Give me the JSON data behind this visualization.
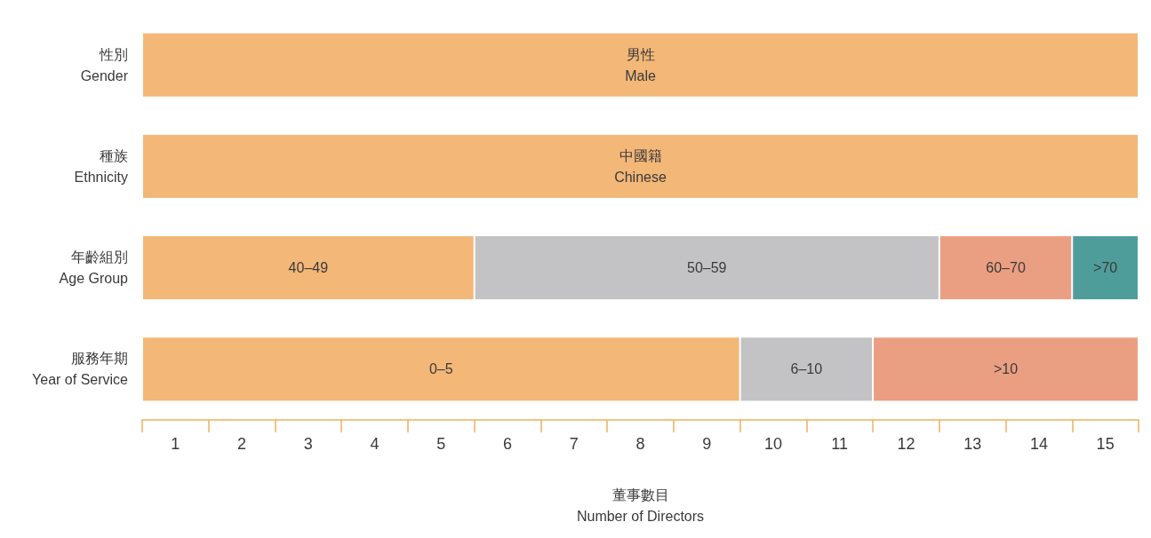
{
  "chart_data": {
    "type": "bar",
    "orientation": "horizontal",
    "stacked": true,
    "xlabel": "董事數目\nNumber of Directors",
    "categories": [
      "性別\nGender",
      "種族\nEthnicity",
      "年齡組別\nAge Group",
      "服務年期\nYear of Service"
    ],
    "series": [
      {
        "color": "#f3b778",
        "values": [
          15,
          15,
          5,
          9
        ],
        "value_labels": [
          "男性\nMale",
          "中國籍\nChinese",
          "40–49",
          "0–5"
        ]
      },
      {
        "color": "#c3c3c5",
        "values": [
          null,
          null,
          7,
          2
        ],
        "value_labels": [
          null,
          null,
          "50–59",
          "6–10"
        ]
      },
      {
        "color": "#eb9f82",
        "values": [
          null,
          null,
          2,
          4
        ],
        "value_labels": [
          null,
          null,
          "60–70",
          ">10"
        ]
      },
      {
        "color": "#4f9d9b",
        "values": [
          null,
          null,
          1,
          null
        ],
        "value_labels": [
          null,
          null,
          ">70",
          null
        ]
      }
    ],
    "xlim": [
      0,
      15
    ],
    "xticks": [
      {
        "value": 0,
        "label": null
      },
      {
        "value": 0.5,
        "label": "1"
      },
      {
        "value": 1,
        "label": null
      },
      {
        "value": 1.5,
        "label": "2"
      },
      {
        "value": 2,
        "label": null
      },
      {
        "value": 2.5,
        "label": "3"
      },
      {
        "value": 3,
        "label": null
      },
      {
        "value": 3.5,
        "label": "4"
      },
      {
        "value": 4,
        "label": null
      },
      {
        "value": 4.5,
        "label": "5"
      },
      {
        "value": 5,
        "label": null
      },
      {
        "value": 5.5,
        "label": "6"
      },
      {
        "value": 6,
        "label": null
      },
      {
        "value": 6.5,
        "label": "7"
      },
      {
        "value": 7,
        "label": null
      },
      {
        "value": 7.5,
        "label": "8"
      },
      {
        "value": 8,
        "label": null
      },
      {
        "value": 8.5,
        "label": "9"
      },
      {
        "value": 9,
        "label": null
      },
      {
        "value": 9.5,
        "label": "10"
      },
      {
        "value": 10,
        "label": null
      },
      {
        "value": 10.5,
        "label": "11"
      },
      {
        "value": 11,
        "label": null
      },
      {
        "value": 11.5,
        "label": "12"
      },
      {
        "value": 12,
        "label": null
      },
      {
        "value": 12.5,
        "label": "13"
      },
      {
        "value": 13,
        "label": null
      },
      {
        "value": 13.5,
        "label": "14"
      },
      {
        "value": 14,
        "label": null
      },
      {
        "value": 14.5,
        "label": "15"
      },
      {
        "value": 15,
        "label": null
      }
    ],
    "grid": false
  }
}
